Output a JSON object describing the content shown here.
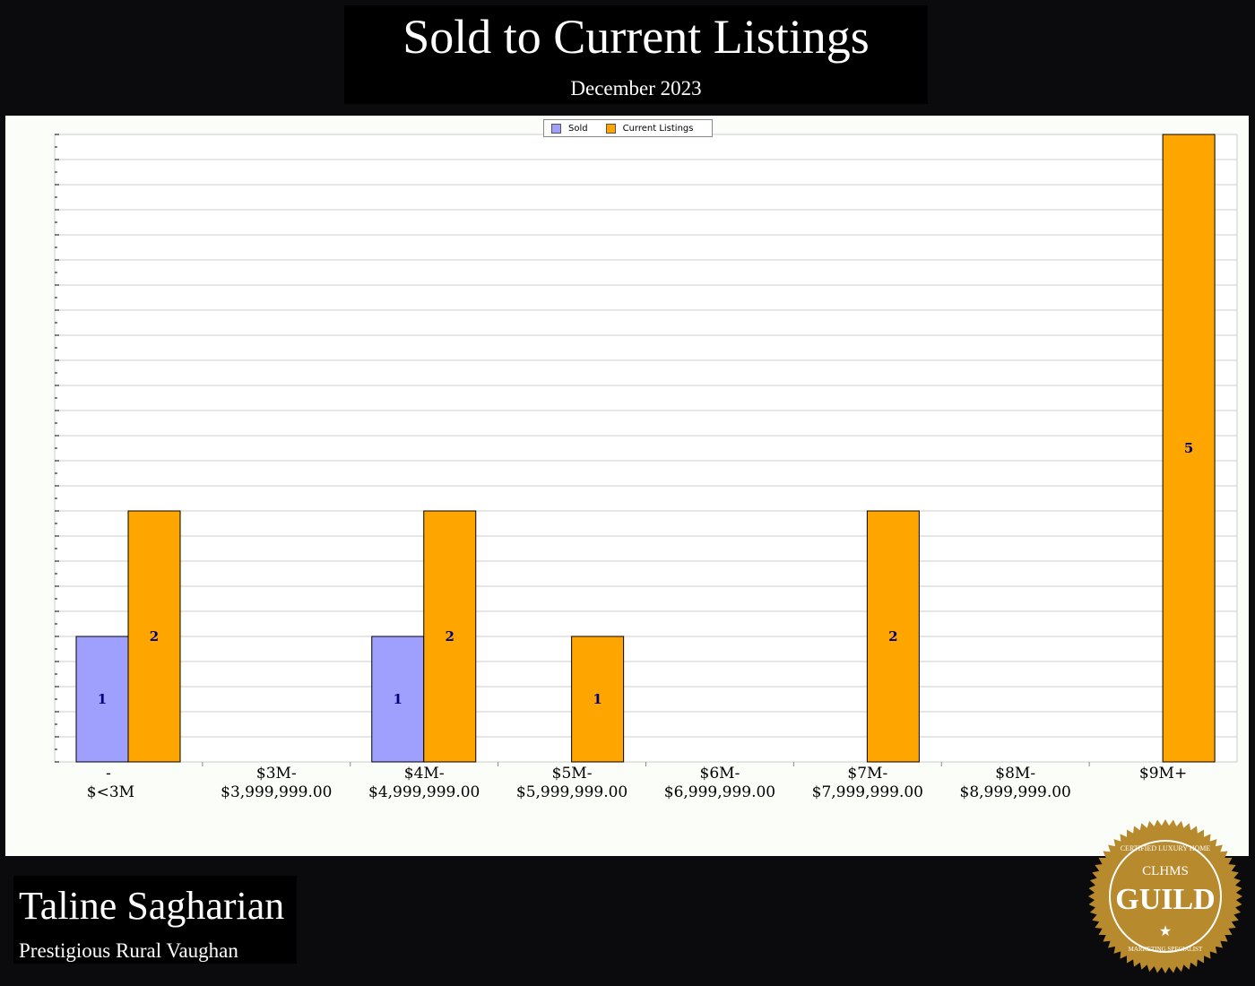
{
  "header": {
    "title": "Sold to Current Listings",
    "subtitle": "December 2023"
  },
  "footer": {
    "agent_name": "Taline Sagharian",
    "office": "Prestigious Rural Vaughan",
    "badge_text": [
      "CERTIFIED LUXURY HOME",
      "CLHMS",
      "GUILD",
      "MARKETING SPECIALIST"
    ]
  },
  "chart_data": {
    "type": "bar",
    "categories": [
      [
        "-",
        "$<3M"
      ],
      [
        "$3M-",
        "$3,999,999.00"
      ],
      [
        "$4M-",
        "$4,999,999.00"
      ],
      [
        "$5M-",
        "$5,999,999.00"
      ],
      [
        "$6M-",
        "$6,999,999.00"
      ],
      [
        "$7M-",
        "$7,999,999.00"
      ],
      [
        "$8M-",
        "$8,999,999.00"
      ],
      [
        "$9M+",
        ""
      ]
    ],
    "series": [
      {
        "name": "Sold",
        "color": "#9f9ffd",
        "values": [
          1,
          0,
          1,
          0,
          0,
          0,
          0,
          0
        ]
      },
      {
        "name": "Current Listings",
        "color": "#ffa500",
        "values": [
          2,
          0,
          2,
          1,
          0,
          2,
          0,
          5
        ]
      }
    ],
    "ylim": [
      0,
      5
    ],
    "grid": true,
    "legend": "top-center",
    "data_label_color": "#00007f"
  }
}
